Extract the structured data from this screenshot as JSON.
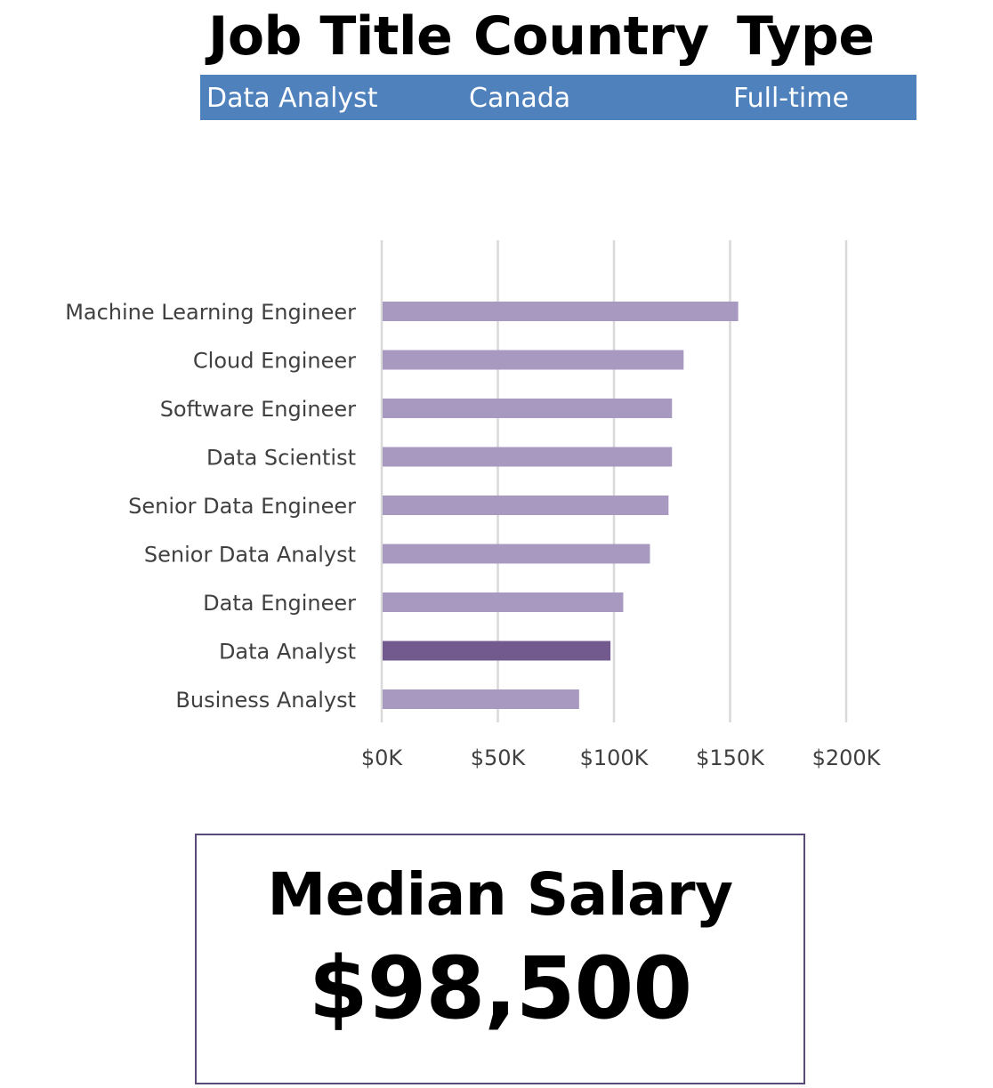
{
  "filters": {
    "headers": [
      "Job Title",
      "Country",
      "Type"
    ],
    "values": [
      "Data Analyst",
      "Canada",
      "Full-time"
    ]
  },
  "colors": {
    "filter_bar": "#4f81bd",
    "bar": "#a899c0",
    "bar_highlight": "#725a8e",
    "gridline": "#d9d9d9",
    "card_border": "#5a4a7a"
  },
  "chart_data": {
    "type": "bar",
    "orientation": "horizontal",
    "categories": [
      "Machine Learning Engineer",
      "Cloud Engineer",
      "Software Engineer",
      "Data Scientist",
      "Senior Data Engineer",
      "Senior Data Analyst",
      "Data Engineer",
      "Data Analyst",
      "Business Analyst"
    ],
    "values": [
      153500,
      130000,
      125000,
      125000,
      123500,
      115500,
      104000,
      98500,
      85000
    ],
    "highlight": "Data Analyst",
    "xlim": [
      0,
      200000
    ],
    "xticks": [
      0,
      50000,
      100000,
      150000,
      200000
    ],
    "xtick_labels": [
      "$0K",
      "$50K",
      "$100K",
      "$150K",
      "$200K"
    ],
    "grid": true,
    "legend": "none"
  },
  "summary": {
    "label": "Median Salary",
    "value": "$98,500"
  }
}
